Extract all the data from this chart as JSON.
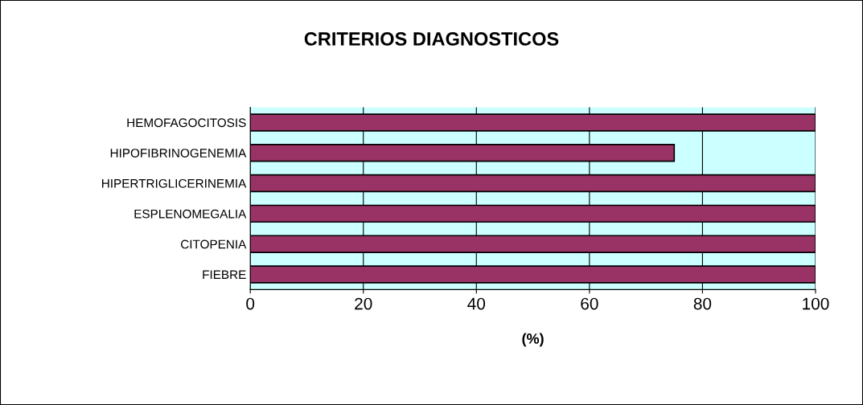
{
  "chart_data": {
    "type": "bar",
    "orientation": "horizontal",
    "title": "CRITERIOS DIAGNOSTICOS",
    "xlabel": "(%)",
    "categories": [
      "HEMOFAGOCITOSIS",
      "HIPOFIBRINOGENEMIA",
      "HIPERTRIGLICERINEMIA",
      "ESPLENOMEGALIA",
      "CITOPENIA",
      "FIEBRE"
    ],
    "values": [
      100,
      75,
      100,
      100,
      100,
      100
    ],
    "color": "#993366",
    "xlim": [
      0,
      100
    ],
    "xticks": [
      0,
      20,
      40,
      60,
      80,
      100
    ],
    "grid": "x",
    "bands": [
      {
        "axis": "x",
        "from": 0,
        "to": 100,
        "color": "#ccffff"
      }
    ]
  }
}
